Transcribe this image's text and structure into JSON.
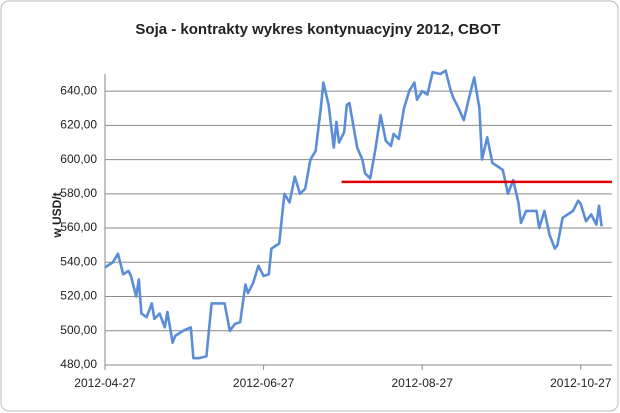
{
  "chart_data": {
    "type": "line",
    "title": "Soja - kontrakty wykres kontynuacyjny 2012, CBOT",
    "ylabel": "w USD/t",
    "x": [
      "2012-04-27",
      "2012-04-30",
      "2012-05-02",
      "2012-05-04",
      "2012-05-06",
      "2012-05-07",
      "2012-05-09",
      "2012-05-10",
      "2012-05-11",
      "2012-05-13",
      "2012-05-15",
      "2012-05-16",
      "2012-05-18",
      "2012-05-20",
      "2012-05-21",
      "2012-05-23",
      "2012-05-24",
      "2012-05-27",
      "2012-05-30",
      "2012-05-31",
      "2012-06-02",
      "2012-06-05",
      "2012-06-07",
      "2012-06-10",
      "2012-06-12",
      "2012-06-14",
      "2012-06-16",
      "2012-06-18",
      "2012-06-20",
      "2012-06-21",
      "2012-06-23",
      "2012-06-25",
      "2012-06-27",
      "2012-06-29",
      "2012-06-30",
      "2012-07-03",
      "2012-07-05",
      "2012-07-07",
      "2012-07-09",
      "2012-07-11",
      "2012-07-13",
      "2012-07-15",
      "2012-07-17",
      "2012-07-19",
      "2012-07-20",
      "2012-07-22",
      "2012-07-24",
      "2012-07-25",
      "2012-07-26",
      "2012-07-28",
      "2012-07-29",
      "2012-07-30",
      "2012-08-02",
      "2012-08-04",
      "2012-08-05",
      "2012-08-07",
      "2012-08-09",
      "2012-08-11",
      "2012-08-13",
      "2012-08-15",
      "2012-08-16",
      "2012-08-18",
      "2012-08-20",
      "2012-08-22",
      "2012-08-24",
      "2012-08-25",
      "2012-08-27",
      "2012-08-29",
      "2012-08-31",
      "2012-09-03",
      "2012-09-05",
      "2012-09-07",
      "2012-09-08",
      "2012-09-10",
      "2012-09-12",
      "2012-09-14",
      "2012-09-16",
      "2012-09-18",
      "2012-09-19",
      "2012-09-21",
      "2012-09-23",
      "2012-09-25",
      "2012-09-27",
      "2012-09-29",
      "2012-10-01",
      "2012-10-03",
      "2012-10-04",
      "2012-10-06",
      "2012-10-10",
      "2012-10-11",
      "2012-10-13",
      "2012-10-15",
      "2012-10-17",
      "2012-10-18",
      "2012-10-20",
      "2012-10-22",
      "2012-10-24",
      "2012-10-26",
      "2012-10-27",
      "2012-10-29",
      "2012-10-31",
      "2012-11-02",
      "2012-11-03",
      "2012-11-04"
    ],
    "series": [
      {
        "color": "#5b8ed6",
        "values": [
          537,
          540,
          545,
          533,
          535,
          532,
          520,
          530,
          510,
          508,
          516,
          507,
          510,
          502,
          511,
          493,
          497,
          500,
          502,
          484,
          484,
          485,
          516,
          516,
          516,
          500,
          504,
          505,
          527,
          522,
          528,
          538,
          532,
          533,
          548,
          551,
          580,
          575,
          590,
          580,
          583,
          600,
          605,
          630,
          645,
          632,
          607,
          622,
          610,
          616,
          632,
          633,
          607,
          600,
          592,
          589,
          606,
          626,
          611,
          608,
          615,
          612,
          630,
          640,
          645,
          635,
          640,
          638,
          651,
          650,
          652,
          640,
          636,
          630,
          623,
          636,
          648,
          630,
          600,
          613,
          598,
          596,
          594,
          580,
          588,
          575,
          563,
          570,
          570,
          560,
          570,
          556,
          548,
          550,
          566,
          568,
          570,
          576,
          574,
          564,
          568,
          562,
          573,
          561
        ]
      }
    ],
    "reference_line": {
      "value": 587,
      "x": [
        "2012-07-27",
        "2012-11-08"
      ],
      "color": "#e00000"
    },
    "xlim": [
      "2012-04-27",
      "2012-11-08"
    ],
    "xticks": [
      "2012-04-27",
      "2012-06-27",
      "2012-08-27",
      "2012-10-27"
    ],
    "ylim": [
      480,
      650
    ],
    "yticks": [
      {
        "value": 480,
        "label": "480,00"
      },
      {
        "value": 500,
        "label": "500,00"
      },
      {
        "value": 520,
        "label": "520,00"
      },
      {
        "value": 540,
        "label": "540,00"
      },
      {
        "value": 560,
        "label": "560,00"
      },
      {
        "value": 580,
        "label": "580,00"
      },
      {
        "value": 600,
        "label": "600,00"
      },
      {
        "value": 620,
        "label": "620,00"
      },
      {
        "value": 640,
        "label": "640,00"
      }
    ],
    "grid": true
  }
}
